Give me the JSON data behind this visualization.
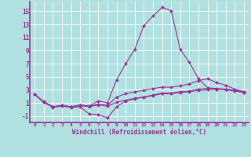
{
  "xlabel": "Windchill (Refroidissement éolien,°C)",
  "background_color": "#b0e0e0",
  "line_color": "#993399",
  "grid_color": "#c8e8e8",
  "x_ticks": [
    0,
    1,
    2,
    3,
    4,
    5,
    6,
    7,
    8,
    9,
    10,
    11,
    12,
    13,
    14,
    15,
    16,
    17,
    18,
    19,
    20,
    21,
    22,
    23
  ],
  "ylim": [
    -2,
    16.5
  ],
  "yticks": [
    -1,
    1,
    3,
    5,
    7,
    9,
    11,
    13,
    15
  ],
  "series1": [
    2.3,
    1.2,
    0.4,
    0.6,
    0.4,
    0.7,
    0.5,
    1.3,
    1.0,
    4.5,
    7.0,
    9.2,
    12.8,
    14.3,
    15.6,
    15.1,
    9.2,
    7.2,
    4.7,
    3.3,
    3.2,
    3.1,
    2.9,
    2.6
  ],
  "series2": [
    2.3,
    1.1,
    0.3,
    0.5,
    0.3,
    0.4,
    -0.7,
    -0.8,
    -1.3,
    0.4,
    1.3,
    1.6,
    1.9,
    2.1,
    2.4,
    2.4,
    2.6,
    2.7,
    2.9,
    3.0,
    3.1,
    3.1,
    2.9,
    2.7
  ],
  "series3": [
    2.3,
    1.1,
    0.4,
    0.6,
    0.4,
    0.6,
    0.4,
    0.7,
    0.5,
    1.1,
    1.4,
    1.7,
    1.9,
    2.2,
    2.5,
    2.5,
    2.7,
    2.8,
    3.1,
    3.2,
    3.1,
    3.0,
    2.8,
    2.6
  ],
  "series4": [
    2.3,
    1.1,
    0.4,
    0.6,
    0.4,
    0.6,
    0.5,
    0.8,
    0.6,
    1.9,
    2.4,
    2.7,
    2.9,
    3.2,
    3.4,
    3.4,
    3.6,
    3.9,
    4.4,
    4.7,
    4.1,
    3.7,
    3.1,
    2.7
  ]
}
